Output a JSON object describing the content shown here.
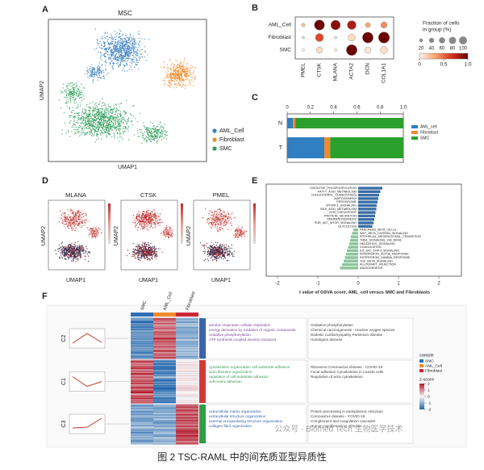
{
  "panel_labels": [
    "A",
    "B",
    "C",
    "D",
    "E",
    "F"
  ],
  "caption": "图 2 TSC-RAML 中的间充质亚型异质性",
  "watermark": "公众号 · Biomed Tech 生物医学技术",
  "umap": {
    "title": "MSC",
    "xlabel": "UMAP1",
    "ylabel": "UMAP2",
    "legend": [
      {
        "name": "AML_Cell",
        "color": "#3a7fc0"
      },
      {
        "name": "Fibroblast",
        "color": "#f08a2c"
      },
      {
        "name": "SMC",
        "color": "#2e9e5a"
      }
    ]
  },
  "feature_umaps": {
    "titles": [
      "MLANA",
      "CTSK",
      "PMEL"
    ],
    "xlabel": "UMAP1",
    "ylabel": "UMAP2"
  },
  "chart_data": [
    {
      "type": "dotplot",
      "categories": [
        "PMEL",
        "CTSK",
        "MLANA",
        "ACTA2",
        "DCN",
        "COL1A1"
      ],
      "series": [
        {
          "name": "AML_Cell",
          "values": [
            10,
            80,
            70,
            60,
            20,
            30
          ],
          "expression": [
            0.2,
            1,
            0.9,
            0.8,
            0.3,
            0.4
          ]
        },
        {
          "name": "Fibroblast",
          "values": [
            5,
            50,
            5,
            40,
            90,
            95
          ],
          "expression": [
            0.1,
            0.6,
            0.05,
            0.1,
            1,
            1
          ]
        },
        {
          "name": "SMC",
          "values": [
            5,
            30,
            5,
            90,
            30,
            40
          ],
          "expression": [
            0,
            0.1,
            0,
            1,
            0.05,
            0.1
          ]
        }
      ],
      "size_legend_title": [
        "Fraction of cells",
        "in group (%)"
      ],
      "size_ticks": [
        20,
        40,
        60,
        80,
        100
      ],
      "color_ticks": [
        0,
        0.5,
        {
          "value": 1,
          "label": "1.0"
        }
      ],
      "colormap": [
        "#fff4e8",
        "#f9a36b",
        "#d7301f",
        "#6b0000"
      ]
    },
    {
      "type": "stacked_barh",
      "categories": [
        "N",
        "T"
      ],
      "series": [
        {
          "name": "AML_cell",
          "color": "#2f7fc1",
          "values": [
            0.05,
            0.32
          ]
        },
        {
          "name": "Fibroblast",
          "color": "#f08a2c",
          "values": [
            0.02,
            0.05
          ]
        },
        {
          "name": "SMC",
          "color": "#2ca02c",
          "values": [
            0.93,
            0.63
          ]
        }
      ],
      "xlim": [
        0,
        1
      ],
      "xticks": [
        0,
        0.2,
        0.4,
        0.6,
        0.8,
        {
          "value": 1,
          "label": "1.0"
        }
      ]
    },
    {
      "type": "barh",
      "categories": [
        "OXIDATIVE_PHOSPHORYLATION",
        "FATTY_ACID_METABOLISM",
        "CHOLESTEROL_HOMEOSTASIS",
        "ADIPOGENESIS",
        "PEROXISOME",
        "MTORC1_SIGNALING",
        "BILE_ACID_METABOLISM",
        "G2M_CHECKPOINT",
        "PROTEIN_SECRETION",
        "SPERMATOGENESIS",
        "PI3K_AKT_MTOR_SIGNALING",
        "GLYCOLYSIS",
        "PANCREAS_BETA_CELLS",
        "WNT_BETA_CATENIN_SIGNALING",
        "EPITHELIAL_MESENCHYMAL_TRANSITION",
        "TNFA_SIGNALING_VIA_NFKB",
        "HEDGEHOG_SIGNALING",
        "COAGULATION",
        "IL6_JAK_STAT3_SIGNALING",
        "INTERFERON_ALPHA_RESPONSE",
        "INTERFERON_GAMMA_RESPONSE",
        "TGF_BETA_SIGNALING",
        "ALLOGRAFT_REJECTION",
        "ANGIOGENESIS"
      ],
      "values": [
        0.6,
        0.55,
        0.52,
        0.5,
        0.48,
        0.46,
        0.45,
        0.43,
        0.42,
        0.4,
        0.38,
        0.35,
        -0.12,
        -0.15,
        -0.18,
        -0.2,
        -0.22,
        -0.25,
        -0.28,
        -0.3,
        -0.33,
        -0.36,
        -0.4,
        -0.45
      ],
      "color_positive": "#3a6ea5",
      "color_negative": "#8cc49a",
      "xlabel": "t value of GSVA score, AML_cell versus SMC and Fibroblasts",
      "xlim": [
        -2.2,
        2.2
      ],
      "xticks": [
        -2,
        -1,
        0,
        1,
        2
      ]
    }
  ],
  "heatmap": {
    "columns": [
      {
        "name": "SMC",
        "color": "#2f6fb5"
      },
      {
        "name": "AML_Cell",
        "color": "#f08a2c"
      },
      {
        "name": "Fibroblast",
        "color": "#c9283a"
      }
    ],
    "clusters": [
      {
        "name": "C2",
        "color": "#3e63a8",
        "go": [
          "aerobic respiration cellular respiration",
          "energy derivation by oxidation of organic compounds",
          "oxidative phosphorylation",
          "ATP synthesis coupled electron transport"
        ],
        "kegg": [
          "Oxidative phosphorylation",
          "Chemical carcinogenesis - reactive oxygen species",
          "Diabetic cardiomyopathy Parkinson disease",
          "Huntington disease"
        ]
      },
      {
        "name": "C1",
        "color": "#d23a3a",
        "go": [
          "cytoskeleton organization cell-substrate adhesion",
          "actin filament organization",
          "regulation of cell-substrate adhesion",
          "cell-matrix adhesion"
        ],
        "kegg": [
          "Ribosome Coronavirus disease - COVID-19",
          "Focal adhesion Cytoskeleton in muscle cells",
          "Regulation of actin cytoskeleton"
        ]
      },
      {
        "name": "C3",
        "color": "#2e9e48",
        "go": [
          "extracellular matrix organization",
          "extracellular structure organization",
          "external encapsulating structure organization",
          "collagen fibril organization"
        ],
        "kegg": [
          "Protein processing in endoplasmic reticulum",
          "Coronavirus disease - COVID-19",
          "Complement and coagulation cascades",
          "Human papillomavirus infection"
        ]
      }
    ],
    "sample_legend_title": "sample",
    "zscore_title": "z-score",
    "zscore_ticks": [
      2,
      1,
      0,
      -1,
      -2
    ]
  }
}
